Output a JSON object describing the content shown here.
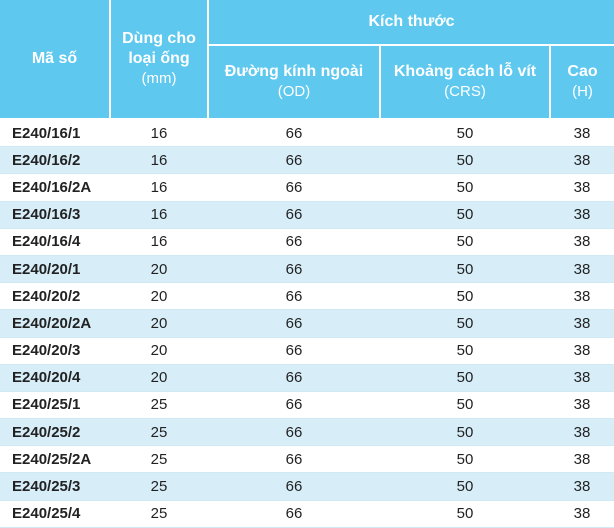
{
  "header": {
    "code": "Mã số",
    "pipe_line1": "Dùng cho",
    "pipe_line2": "loại ống",
    "pipe_unit": "(mm)",
    "dimensions": "Kích thước",
    "od_label": "Đường kính ngoài",
    "od_unit": "(OD)",
    "crs_label": "Khoảng cách lỗ vít",
    "crs_unit": "(CRS)",
    "h_label": "Cao",
    "h_unit": "(H)"
  },
  "rows": [
    {
      "code": "E240/16/1",
      "pipe": "16",
      "od": "66",
      "crs": "50",
      "h": "38"
    },
    {
      "code": "E240/16/2",
      "pipe": "16",
      "od": "66",
      "crs": "50",
      "h": "38"
    },
    {
      "code": "E240/16/2A",
      "pipe": "16",
      "od": "66",
      "crs": "50",
      "h": "38"
    },
    {
      "code": "E240/16/3",
      "pipe": "16",
      "od": "66",
      "crs": "50",
      "h": "38"
    },
    {
      "code": "E240/16/4",
      "pipe": "16",
      "od": "66",
      "crs": "50",
      "h": "38"
    },
    {
      "code": "E240/20/1",
      "pipe": "20",
      "od": "66",
      "crs": "50",
      "h": "38"
    },
    {
      "code": "E240/20/2",
      "pipe": "20",
      "od": "66",
      "crs": "50",
      "h": "38"
    },
    {
      "code": "E240/20/2A",
      "pipe": "20",
      "od": "66",
      "crs": "50",
      "h": "38"
    },
    {
      "code": "E240/20/3",
      "pipe": "20",
      "od": "66",
      "crs": "50",
      "h": "38"
    },
    {
      "code": "E240/20/4",
      "pipe": "20",
      "od": "66",
      "crs": "50",
      "h": "38"
    },
    {
      "code": "E240/25/1",
      "pipe": "25",
      "od": "66",
      "crs": "50",
      "h": "38"
    },
    {
      "code": "E240/25/2",
      "pipe": "25",
      "od": "66",
      "crs": "50",
      "h": "38"
    },
    {
      "code": "E240/25/2A",
      "pipe": "25",
      "od": "66",
      "crs": "50",
      "h": "38"
    },
    {
      "code": "E240/25/3",
      "pipe": "25",
      "od": "66",
      "crs": "50",
      "h": "38"
    },
    {
      "code": "E240/25/4",
      "pipe": "25",
      "od": "66",
      "crs": "50",
      "h": "38"
    }
  ],
  "colors": {
    "header": "#5ec8ef",
    "alt_row": "#d7eef9"
  }
}
